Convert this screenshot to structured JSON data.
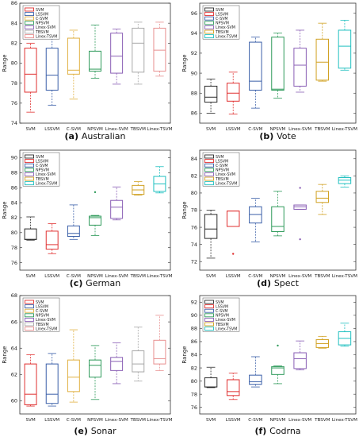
{
  "figure": {
    "categories": [
      "SVM",
      "LSSVM",
      "C-SVM",
      "NPSVM",
      "Linex-SVM",
      "TBSVM",
      "Linex-TSVM"
    ],
    "colors": [
      "#e03030",
      "#3a5fa8",
      "#e0b040",
      "#2e9a5a",
      "#8a5fb5",
      "#a8a8a8",
      "#e89090"
    ]
  },
  "chart_data": [
    {
      "type": "box",
      "caption": "(a) Australian",
      "ylabel": "Range",
      "ylim": [
        74,
        86
      ],
      "yticks": [
        74,
        76,
        78,
        80,
        82,
        84,
        86
      ],
      "colors": [
        "#e03030",
        "#3a5fa8",
        "#e0b040",
        "#2e9a5a",
        "#8a5fb5",
        "#a8a8a8",
        "#e89090"
      ],
      "legend": [
        "SVM",
        "LSSVM",
        "C-SVM",
        "NPSVM",
        "Linex-SVM",
        "TBSVM",
        "Linex-TSVM"
      ],
      "boxes": [
        {
          "category": "SVM",
          "whisker_low": 75.1,
          "q1": 77.1,
          "median": 78.9,
          "q3": 81.5,
          "whisker_high": 82.0,
          "mean": null,
          "outliers": []
        },
        {
          "category": "LSSVM",
          "whisker_low": 75.8,
          "q1": 77.3,
          "median": 78.8,
          "q3": 81.5,
          "whisker_high": 82.5,
          "mean": null,
          "outliers": []
        },
        {
          "category": "C-SVM",
          "whisker_low": 76.4,
          "q1": 78.9,
          "median": 79.3,
          "q3": 82.5,
          "whisker_high": 83.3,
          "mean": null,
          "outliers": []
        },
        {
          "category": "NPSVM",
          "whisker_low": 78.5,
          "q1": 79.2,
          "median": 79.4,
          "q3": 81.2,
          "whisker_high": 83.8,
          "mean": null,
          "outliers": []
        },
        {
          "category": "Linex-SVM",
          "whisker_low": 77.9,
          "q1": 79.0,
          "median": 80.7,
          "q3": 83.0,
          "whisker_high": 83.4,
          "mean": null,
          "outliers": []
        },
        {
          "category": "TBSVM",
          "whisker_low": 77.9,
          "q1": 79.1,
          "median": 82.0,
          "q3": 83.5,
          "whisker_high": 84.1,
          "mean": null,
          "outliers": []
        },
        {
          "category": "Linex-TSVM",
          "whisker_low": 78.7,
          "q1": 79.2,
          "median": 81.3,
          "q3": 83.5,
          "whisker_high": 84.1,
          "mean": null,
          "outliers": []
        }
      ]
    },
    {
      "type": "box",
      "caption": "(b) Vote",
      "ylabel": "Range",
      "ylim": [
        85,
        97
      ],
      "yticks": [
        86,
        88,
        90,
        92,
        94,
        96
      ],
      "colors": [
        "#2a2a2a",
        "#e03030",
        "#3a5fa8",
        "#2e9a5a",
        "#8a5fb5",
        "#d0a020",
        "#20c0c0"
      ],
      "legend": [
        "SVM",
        "LSSVM",
        "C-SVM",
        "NPSVM",
        "Linex-SVM",
        "TBSVM",
        "Linex-TSVM"
      ],
      "boxes": [
        {
          "category": "SVM",
          "whisker_low": 86.0,
          "q1": 87.1,
          "median": 87.6,
          "q3": 88.7,
          "whisker_high": 89.4,
          "mean": null,
          "outliers": []
        },
        {
          "category": "LSSVM",
          "whisker_low": 85.9,
          "q1": 87.2,
          "median": 88.0,
          "q3": 89.0,
          "whisker_high": 90.1,
          "mean": null,
          "outliers": []
        },
        {
          "category": "C-SVM",
          "whisker_low": 86.5,
          "q1": 88.3,
          "median": 89.2,
          "q3": 93.1,
          "whisker_high": 93.6,
          "mean": null,
          "outliers": []
        },
        {
          "category": "NPSVM",
          "whisker_low": 87.5,
          "q1": 88.3,
          "median": 88.4,
          "q3": 93.6,
          "whisker_high": 94.0,
          "mean": null,
          "outliers": []
        },
        {
          "category": "Linex-SVM",
          "whisker_low": 88.1,
          "q1": 88.7,
          "median": 90.8,
          "q3": 92.5,
          "whisker_high": 94.3,
          "mean": null,
          "outliers": []
        },
        {
          "category": "TBSVM",
          "whisker_low": 89.2,
          "q1": 89.3,
          "median": 91.1,
          "q3": 93.4,
          "whisker_high": 95.0,
          "mean": null,
          "outliers": []
        },
        {
          "category": "Linex-TSVM",
          "whisker_low": 90.3,
          "q1": 90.5,
          "median": 92.7,
          "q3": 94.3,
          "whisker_high": 95.3,
          "mean": null,
          "outliers": []
        }
      ]
    },
    {
      "type": "box",
      "caption": "(c) German",
      "ylabel": "Range",
      "ylim": [
        75,
        91
      ],
      "yticks": [
        76,
        78,
        80,
        82,
        84,
        86,
        88,
        90
      ],
      "colors": [
        "#2a2a2a",
        "#e03030",
        "#3a5fa8",
        "#2e9a5a",
        "#8a5fb5",
        "#d0a020",
        "#20c0c0"
      ],
      "legend": [
        "SVM",
        "LSSVM",
        "C-SVM",
        "NPSVM",
        "Linex-SVM",
        "TBSVM",
        "Linex-TSVM"
      ],
      "boxes": [
        {
          "category": "SVM",
          "whisker_low": 79.0,
          "q1": 79.1,
          "median": 79.1,
          "q3": 80.5,
          "whisker_high": 82.1,
          "mean": null,
          "outliers": []
        },
        {
          "category": "LSSVM",
          "whisker_low": 77.2,
          "q1": 77.8,
          "median": 78.4,
          "q3": 80.2,
          "whisker_high": 81.2,
          "mean": null,
          "outliers": []
        },
        {
          "category": "C-SVM",
          "whisker_low": 79.1,
          "q1": 79.5,
          "median": 79.9,
          "q3": 80.9,
          "whisker_high": 83.7,
          "mean": null,
          "outliers": []
        },
        {
          "category": "NPSVM",
          "whisker_low": 79.6,
          "q1": 81.0,
          "median": 82.0,
          "q3": 82.2,
          "whisker_high": 82.3,
          "mean": null,
          "outliers": [
            85.4
          ]
        },
        {
          "category": "Linex-SVM",
          "whisker_low": 81.7,
          "q1": 81.9,
          "median": 83.4,
          "q3": 84.3,
          "whisker_high": 86.1,
          "mean": null,
          "outliers": []
        },
        {
          "category": "TBSVM",
          "whisker_low": 85.0,
          "q1": 85.1,
          "median": 85.7,
          "q3": 86.3,
          "whisker_high": 86.8,
          "mean": null,
          "outliers": []
        },
        {
          "category": "Linex-TSVM",
          "whisker_low": 85.3,
          "q1": 85.5,
          "median": 86.5,
          "q3": 87.5,
          "whisker_high": 88.8,
          "mean": null,
          "outliers": []
        }
      ]
    },
    {
      "type": "box",
      "caption": "(d) Spect",
      "ylabel": "Range",
      "ylim": [
        71,
        85
      ],
      "yticks": [
        72,
        74,
        76,
        78,
        80,
        82,
        84
      ],
      "colors": [
        "#2a2a2a",
        "#e03030",
        "#3a5fa8",
        "#2e9a5a",
        "#8a5fb5",
        "#d0a020",
        "#20c0c0"
      ],
      "legend": [
        "SVM",
        "LSSVM",
        "C-SVM",
        "NPSVM",
        "Linex-SVM",
        "TBSVM",
        "Linex-TSVM"
      ],
      "boxes": [
        {
          "category": "SVM",
          "whisker_low": 72.4,
          "q1": 74.7,
          "median": 75.8,
          "q3": 77.5,
          "whisker_high": 78.0,
          "mean": null,
          "outliers": []
        },
        {
          "category": "LSSVM",
          "whisker_low": 76.1,
          "q1": 76.1,
          "median": 77.9,
          "q3": 77.9,
          "whisker_high": 77.9,
          "mean": null,
          "outliers": [
            72.9
          ]
        },
        {
          "category": "C-SVM",
          "whisker_low": 74.3,
          "q1": 76.5,
          "median": 77.5,
          "q3": 78.4,
          "whisker_high": 79.4,
          "mean": null,
          "outliers": []
        },
        {
          "category": "NPSVM",
          "whisker_low": 75.0,
          "q1": 75.5,
          "median": 76.1,
          "q3": 78.4,
          "whisker_high": 80.2,
          "mean": null,
          "outliers": []
        },
        {
          "category": "Linex-SVM",
          "whisker_low": 78.1,
          "q1": 78.1,
          "median": 78.4,
          "q3": 78.6,
          "whisker_high": 78.6,
          "mean": null,
          "outliers": [
            80.6,
            74.6
          ]
        },
        {
          "category": "TBSVM",
          "whisker_low": 77.5,
          "q1": 78.9,
          "median": 79.4,
          "q3": 80.2,
          "whisker_high": 81.0,
          "mean": null,
          "outliers": []
        },
        {
          "category": "Linex-TSVM",
          "whisker_low": 80.7,
          "q1": 81.1,
          "median": 81.5,
          "q3": 81.8,
          "whisker_high": 82.0,
          "mean": null,
          "outliers": []
        }
      ]
    },
    {
      "type": "box",
      "caption": "(e) Sonar",
      "ylabel": "Range",
      "ylim": [
        59,
        68
      ],
      "yticks": [
        60,
        62,
        64,
        66,
        68
      ],
      "colors": [
        "#e03030",
        "#3a5fa8",
        "#e0b040",
        "#2e9a5a",
        "#8a5fb5",
        "#a8a8a8",
        "#e89090"
      ],
      "legend": [
        "SVM",
        "LSSVM",
        "C-SVM",
        "NPSVM",
        "Linex-SVM",
        "TBSVM",
        "Linex-TSVM"
      ],
      "boxes": [
        {
          "category": "SVM",
          "whisker_low": 59.6,
          "q1": 59.7,
          "median": 60.5,
          "q3": 62.8,
          "whisker_high": 63.5,
          "mean": null,
          "outliers": []
        },
        {
          "category": "LSSVM",
          "whisker_low": 59.6,
          "q1": 59.8,
          "median": 60.5,
          "q3": 62.8,
          "whisker_high": 63.6,
          "mean": null,
          "outliers": []
        },
        {
          "category": "C-SVM",
          "whisker_low": 59.9,
          "q1": 60.7,
          "median": 61.8,
          "q3": 63.1,
          "whisker_high": 65.4,
          "mean": null,
          "outliers": []
        },
        {
          "category": "NPSVM",
          "whisker_low": 60.1,
          "q1": 61.8,
          "median": 62.7,
          "q3": 63.1,
          "whisker_high": 64.2,
          "mean": null,
          "outliers": []
        },
        {
          "category": "Linex-SVM",
          "whisker_low": 61.3,
          "q1": 62.3,
          "median": 63.0,
          "q3": 63.3,
          "whisker_high": 64.4,
          "mean": null,
          "outliers": []
        },
        {
          "category": "TBSVM",
          "whisker_low": 61.5,
          "q1": 62.2,
          "median": 62.8,
          "q3": 63.8,
          "whisker_high": 65.6,
          "mean": null,
          "outliers": []
        },
        {
          "category": "Linex-TSVM",
          "whisker_low": 62.3,
          "q1": 62.8,
          "median": 63.2,
          "q3": 64.6,
          "whisker_high": 66.5,
          "mean": null,
          "outliers": []
        }
      ]
    },
    {
      "type": "box",
      "caption": "(f) Codrna",
      "ylabel": "Range",
      "ylim": [
        75,
        93
      ],
      "yticks": [
        76,
        78,
        80,
        82,
        84,
        86,
        88,
        90,
        92
      ],
      "colors": [
        "#2a2a2a",
        "#e03030",
        "#3a5fa8",
        "#2e9a5a",
        "#8a5fb5",
        "#d0a020",
        "#20c0c0"
      ],
      "legend": [
        "SVM",
        "LSSVM",
        "C-SVM",
        "NPSVM",
        "Linex-SVM",
        "TBSVM",
        "Linex-TSVM"
      ],
      "boxes": [
        {
          "category": "SVM",
          "whisker_low": 79.0,
          "q1": 79.1,
          "median": 79.1,
          "q3": 80.5,
          "whisker_high": 82.1,
          "mean": null,
          "outliers": []
        },
        {
          "category": "LSSVM",
          "whisker_low": 77.2,
          "q1": 77.8,
          "median": 78.4,
          "q3": 80.2,
          "whisker_high": 81.2,
          "mean": null,
          "outliers": []
        },
        {
          "category": "C-SVM",
          "whisker_low": 79.1,
          "q1": 79.5,
          "median": 79.9,
          "q3": 80.9,
          "whisker_high": 83.7,
          "mean": null,
          "outliers": []
        },
        {
          "category": "NPSVM",
          "whisker_low": 79.6,
          "q1": 81.0,
          "median": 82.0,
          "q3": 82.2,
          "whisker_high": 82.3,
          "mean": null,
          "outliers": [
            85.4
          ]
        },
        {
          "category": "Linex-SVM",
          "whisker_low": 81.7,
          "q1": 81.9,
          "median": 83.4,
          "q3": 84.3,
          "whisker_high": 86.1,
          "mean": null,
          "outliers": []
        },
        {
          "category": "TBSVM",
          "whisker_low": 85.0,
          "q1": 85.1,
          "median": 85.7,
          "q3": 86.3,
          "whisker_high": 86.8,
          "mean": null,
          "outliers": []
        },
        {
          "category": "Linex-TSVM",
          "whisker_low": 85.3,
          "q1": 85.5,
          "median": 86.5,
          "q3": 87.5,
          "whisker_high": 88.8,
          "mean": null,
          "outliers": []
        }
      ]
    }
  ]
}
